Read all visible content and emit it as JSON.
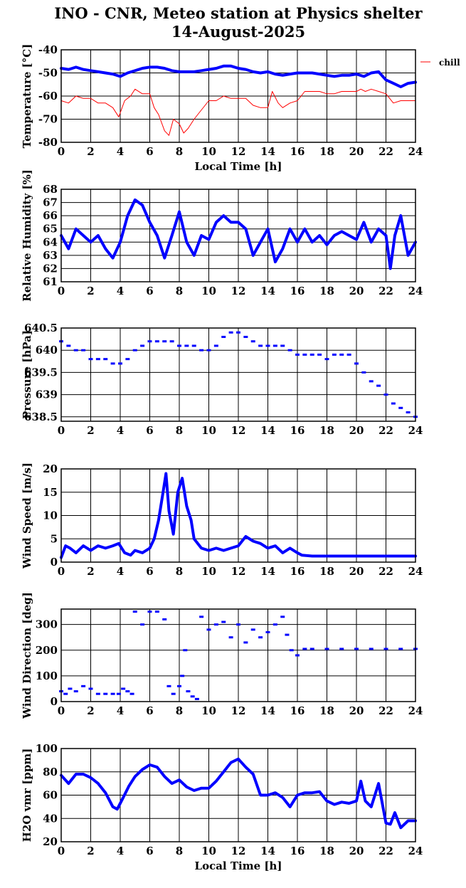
{
  "title": "INO - CNR, Meteo station at Physics shelter",
  "subtitle": "14-August-2025",
  "colors": {
    "main": "#0000ff",
    "chill": "#ff0000",
    "grid": "#000000"
  },
  "chart_data": [
    {
      "type": "line",
      "ylabel": "Temperature [°C]",
      "xlabel": "Local Time [h]",
      "xlim": [
        0,
        24
      ],
      "ylim": [
        -80,
        -40
      ],
      "xticks": [
        "0",
        "2",
        "4",
        "6",
        "8",
        "10",
        "12",
        "14",
        "16",
        "18",
        "20",
        "22",
        "24"
      ],
      "yticks": [
        "-80",
        "-70",
        "-60",
        "-50",
        "-40"
      ],
      "legend": "chill",
      "series": [
        {
          "name": "",
          "x": [
            0,
            0.5,
            1,
            1.5,
            2,
            2.5,
            3,
            3.5,
            4,
            4.5,
            5,
            5.5,
            6,
            6.5,
            7,
            7.5,
            8,
            8.5,
            9,
            9.5,
            10,
            10.5,
            11,
            11.5,
            12,
            12.5,
            13,
            13.5,
            14,
            14.5,
            15,
            15.5,
            16,
            16.5,
            17,
            17.5,
            18,
            18.5,
            19,
            19.5,
            20,
            20.5,
            21,
            21.5,
            22,
            22.5,
            23,
            23.5,
            24
          ],
          "y": [
            -48,
            -48.5,
            -47.5,
            -48.5,
            -49,
            -49.5,
            -50,
            -50.5,
            -51.5,
            -50,
            -49,
            -48,
            -47.5,
            -47.5,
            -48,
            -49,
            -49.5,
            -49.5,
            -49.5,
            -49,
            -48.5,
            -48,
            -47,
            -47,
            -48,
            -48.5,
            -49.5,
            -50,
            -49.5,
            -50.5,
            -51,
            -50.5,
            -50,
            -50,
            -50,
            -50.5,
            -51,
            -51.5,
            -51,
            -51,
            -50.5,
            -51.5,
            -50,
            -49.5,
            -53,
            -54.5,
            -56,
            -54.5,
            -54
          ]
        },
        {
          "name": "chill",
          "x": [
            0,
            0.5,
            1,
            1.5,
            2,
            2.5,
            3,
            3.5,
            3.9,
            4.3,
            4.7,
            5,
            5.5,
            6,
            6.3,
            6.6,
            7,
            7.3,
            7.6,
            8,
            8.3,
            8.6,
            9,
            9.5,
            10,
            10.5,
            11,
            11.5,
            12,
            12.5,
            13,
            13.5,
            14,
            14.3,
            14.7,
            15,
            15.5,
            16,
            16.5,
            17,
            17.5,
            18,
            18.5,
            19,
            19.5,
            20,
            20.3,
            20.6,
            21,
            21.5,
            22,
            22.5,
            23,
            23.5,
            24
          ],
          "y": [
            -62,
            -63,
            -60,
            -61,
            -61,
            -63,
            -63,
            -65,
            -69,
            -62,
            -60,
            -57,
            -59,
            -59,
            -65,
            -68,
            -75,
            -77,
            -70,
            -72,
            -76,
            -74,
            -70,
            -66,
            -62,
            -62,
            -60,
            -61,
            -61,
            -61,
            -64,
            -65,
            -65,
            -58,
            -63,
            -65,
            -63,
            -62,
            -58,
            -58,
            -58,
            -59,
            -59,
            -58,
            -58,
            -58,
            -57,
            -58,
            -57,
            -58,
            -59,
            -63,
            -62,
            -62,
            -62
          ]
        }
      ]
    },
    {
      "type": "line",
      "ylabel": "Relative Humidity [%]",
      "xlabel": "",
      "xlim": [
        0,
        24
      ],
      "ylim": [
        61,
        68
      ],
      "xticks": [
        "0",
        "2",
        "4",
        "6",
        "8",
        "10",
        "12",
        "14",
        "16",
        "18",
        "20",
        "22",
        "24"
      ],
      "yticks": [
        "61",
        "62",
        "63",
        "64",
        "65",
        "66",
        "67",
        "68"
      ],
      "series": [
        {
          "name": "",
          "x": [
            0,
            0.5,
            1,
            1.5,
            2,
            2.5,
            3,
            3.5,
            4,
            4.5,
            5,
            5.5,
            6,
            6.5,
            7,
            7.5,
            8,
            8.5,
            9,
            9.5,
            10,
            10.5,
            11,
            11.5,
            12,
            12.5,
            13,
            13.5,
            14,
            14.5,
            15,
            15.5,
            16,
            16.5,
            17,
            17.5,
            18,
            18.5,
            19,
            19.5,
            20,
            20.5,
            21,
            21.5,
            22,
            22.3,
            22.6,
            23,
            23.5,
            24
          ],
          "y": [
            64.5,
            63.5,
            65,
            64.5,
            64,
            64.5,
            63.5,
            62.8,
            64,
            66,
            67.2,
            66.8,
            65.5,
            64.5,
            62.8,
            64.5,
            66.3,
            64,
            63,
            64.5,
            64.2,
            65.5,
            66,
            65.5,
            65.5,
            65,
            63,
            64,
            65,
            62.5,
            63.5,
            65,
            64,
            65,
            64,
            64.5,
            63.8,
            64.5,
            64.8,
            64.5,
            64.2,
            65.5,
            64,
            65,
            64.5,
            62,
            64.5,
            66,
            63,
            64
          ]
        }
      ]
    },
    {
      "type": "scatter",
      "ylabel": "Pressure [hPa]",
      "xlabel": "",
      "xlim": [
        0,
        24
      ],
      "ylim": [
        638.4,
        640.5
      ],
      "xticks": [
        "0",
        "2",
        "4",
        "6",
        "8",
        "10",
        "12",
        "14",
        "16",
        "18",
        "20",
        "22",
        "24"
      ],
      "yticks": [
        "638.5",
        "639",
        "639.5",
        "640",
        "640.5"
      ],
      "series": [
        {
          "name": "",
          "x": [
            0,
            0.5,
            1,
            1.5,
            2,
            2.5,
            3,
            3.5,
            4,
            4.5,
            5,
            5.5,
            6,
            6.5,
            7,
            7.5,
            8,
            8.5,
            9,
            9.5,
            10,
            10.5,
            11,
            11.5,
            12,
            12.5,
            13,
            13.5,
            14,
            14.5,
            15,
            15.5,
            16,
            16.5,
            17,
            17.5,
            18,
            18.5,
            19,
            19.5,
            20,
            20.5,
            21,
            21.5,
            22,
            22.5,
            23,
            23.5,
            24
          ],
          "y": [
            640.2,
            640.1,
            640,
            640,
            639.8,
            639.8,
            639.8,
            639.7,
            639.7,
            639.8,
            640,
            640.1,
            640.2,
            640.2,
            640.2,
            640.2,
            640.1,
            640.1,
            640.1,
            640,
            640,
            640.1,
            640.3,
            640.4,
            640.4,
            640.3,
            640.2,
            640.1,
            640.1,
            640.1,
            640.1,
            640,
            639.9,
            639.9,
            639.9,
            639.9,
            639.8,
            639.9,
            639.9,
            639.9,
            639.7,
            639.5,
            639.3,
            639.2,
            639,
            638.8,
            638.7,
            638.6,
            638.5
          ]
        }
      ]
    },
    {
      "type": "line",
      "ylabel": "Wind Speed [m/s]",
      "xlabel": "",
      "xlim": [
        0,
        24
      ],
      "ylim": [
        0,
        20
      ],
      "xticks": [
        "0",
        "2",
        "4",
        "6",
        "8",
        "10",
        "12",
        "14",
        "16",
        "18",
        "20",
        "22",
        "24"
      ],
      "yticks": [
        "0",
        "5",
        "10",
        "15",
        "20"
      ],
      "series": [
        {
          "name": "",
          "x": [
            0,
            0.3,
            0.6,
            1,
            1.5,
            2,
            2.5,
            3,
            3.5,
            3.9,
            4.3,
            4.7,
            5,
            5.5,
            6,
            6.3,
            6.6,
            6.9,
            7.1,
            7.3,
            7.6,
            7.9,
            8.2,
            8.5,
            8.8,
            9,
            9.5,
            10,
            10.5,
            11,
            11.5,
            12,
            12.5,
            13,
            13.5,
            14,
            14.5,
            15,
            15.5,
            16,
            16.3,
            17,
            18,
            19,
            20,
            21,
            22,
            23,
            24
          ],
          "y": [
            1,
            3.5,
            3,
            2,
            3.5,
            2.5,
            3.5,
            3,
            3.5,
            4,
            2,
            1.5,
            2.5,
            2,
            3,
            5,
            9,
            15,
            19,
            11,
            6,
            15,
            18,
            12,
            9,
            5,
            3,
            2.5,
            3,
            2.5,
            3,
            3.5,
            5.5,
            4.5,
            4,
            3,
            3.5,
            2,
            3,
            2,
            1.5,
            1.3,
            1.3,
            1.3,
            1.3,
            1.3,
            1.3,
            1.3,
            1.3
          ]
        }
      ]
    },
    {
      "type": "scatter",
      "ylabel": "Wind Direction [deg]",
      "xlabel": "",
      "xlim": [
        0,
        24
      ],
      "ylim": [
        0,
        360
      ],
      "xticks": [
        "0",
        "2",
        "4",
        "6",
        "8",
        "10",
        "12",
        "14",
        "16",
        "18",
        "20",
        "22",
        "24"
      ],
      "yticks": [
        "0",
        "100",
        "200",
        "300"
      ],
      "series": [
        {
          "name": "",
          "x": [
            0,
            0.3,
            0.6,
            1,
            1.5,
            2,
            2.5,
            3,
            3.5,
            3.9,
            4.2,
            4.5,
            4.8,
            5,
            5.5,
            6,
            6.5,
            7,
            7.3,
            7.6,
            8,
            8.2,
            8.4,
            8.6,
            8.9,
            9.2,
            9.5,
            10,
            10.5,
            11,
            11.5,
            12,
            12.5,
            13,
            13.5,
            14,
            14.5,
            15,
            15.3,
            15.6,
            16,
            16.5,
            17,
            18,
            19,
            20,
            21,
            22,
            23,
            24
          ],
          "y": [
            40,
            30,
            50,
            40,
            60,
            50,
            30,
            30,
            30,
            30,
            50,
            40,
            30,
            350,
            300,
            350,
            350,
            320,
            60,
            30,
            60,
            100,
            200,
            40,
            20,
            10,
            330,
            280,
            300,
            310,
            250,
            300,
            230,
            280,
            250,
            270,
            300,
            330,
            260,
            200,
            180,
            205,
            205,
            205,
            205,
            205,
            205,
            205,
            205,
            205
          ]
        }
      ]
    },
    {
      "type": "line",
      "ylabel": "H2O vmr [ppm]",
      "xlabel": "Local Time [h]",
      "xlim": [
        0,
        24
      ],
      "ylim": [
        20,
        100
      ],
      "xticks": [
        "0",
        "2",
        "4",
        "6",
        "8",
        "10",
        "12",
        "14",
        "16",
        "18",
        "20",
        "22",
        "24"
      ],
      "yticks": [
        "20",
        "40",
        "60",
        "80",
        "100"
      ],
      "series": [
        {
          "name": "",
          "x": [
            0,
            0.5,
            1,
            1.5,
            2,
            2.5,
            3,
            3.5,
            3.8,
            4.2,
            4.6,
            5,
            5.5,
            6,
            6.5,
            7,
            7.5,
            8,
            8.5,
            9,
            9.5,
            10,
            10.5,
            11,
            11.5,
            12,
            12.5,
            13,
            13.5,
            14,
            14.5,
            15,
            15.5,
            16,
            16.5,
            17,
            17.5,
            18,
            18.5,
            19,
            19.5,
            20,
            20.3,
            20.6,
            21,
            21.5,
            22,
            22.3,
            22.6,
            23,
            23.5,
            24
          ],
          "y": [
            77,
            70,
            78,
            78,
            75,
            70,
            62,
            50,
            48,
            58,
            68,
            76,
            82,
            86,
            84,
            76,
            70,
            73,
            67,
            64,
            66,
            66,
            72,
            80,
            88,
            91,
            84,
            78,
            60,
            60,
            62,
            58,
            50,
            60,
            62,
            62,
            63,
            55,
            52,
            54,
            53,
            55,
            72,
            55,
            50,
            70,
            36,
            35,
            45,
            32,
            38,
            38
          ]
        }
      ]
    }
  ]
}
